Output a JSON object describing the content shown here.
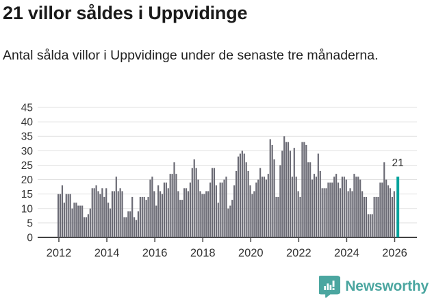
{
  "header": {
    "title": "21 villor såldes i Uppvidinge",
    "subtitle": "Antal sålda villor i Uppvidinge under de senaste tre månaderna."
  },
  "chart_data": {
    "type": "bar",
    "x_start": "2012-01",
    "x_frequency": "monthly",
    "values": [
      15,
      15,
      18,
      12,
      15,
      15,
      15,
      10,
      12,
      12,
      11,
      11,
      11,
      7,
      7,
      8,
      10,
      17,
      17,
      18,
      16,
      15,
      17,
      14,
      17,
      12,
      10,
      16,
      16,
      21,
      16,
      17,
      16,
      7,
      7,
      9,
      9,
      14,
      7,
      6,
      9,
      14,
      14,
      14,
      13,
      14,
      20,
      21,
      16,
      11,
      18,
      16,
      15,
      19,
      19,
      17,
      22,
      22,
      26,
      22,
      16,
      13,
      13,
      17,
      17,
      16,
      19,
      24,
      27,
      24,
      20,
      16,
      15,
      15,
      16,
      16,
      19,
      24,
      24,
      18,
      12,
      19,
      19,
      20,
      21,
      10,
      11,
      13,
      18,
      23,
      28,
      29,
      30,
      29,
      26,
      23,
      18,
      15,
      16,
      19,
      20,
      24,
      21,
      21,
      20,
      22,
      34,
      32,
      27,
      14,
      14,
      25,
      30,
      35,
      33,
      33,
      30,
      21,
      31,
      21,
      16,
      14,
      33,
      33,
      32,
      26,
      26,
      20,
      22,
      21,
      29,
      23,
      17,
      17,
      17,
      19,
      19,
      19,
      21,
      22,
      19,
      17,
      21,
      21,
      20,
      16,
      17,
      16,
      22,
      21,
      21,
      20,
      16,
      14,
      14,
      8,
      8,
      8,
      14,
      14,
      14,
      19,
      19,
      26,
      20,
      18,
      17,
      14,
      16,
      21
    ],
    "highlight": {
      "index": 169,
      "value": 21,
      "label": "21",
      "color": "#00A39C"
    },
    "bar_color": "#6B6B75",
    "x_tick_labels": [
      "2012",
      "2014",
      "2016",
      "2018",
      "2020",
      "2022",
      "2024",
      "2026"
    ],
    "y_tick_labels": [
      0,
      5,
      10,
      15,
      20,
      25,
      30,
      35,
      40,
      45
    ],
    "ylim": [
      0,
      45
    ],
    "grid": "horizontal",
    "legend": "none"
  },
  "footer": {
    "brand": "Newsworthy",
    "brand_color": "#4BA6A0"
  }
}
